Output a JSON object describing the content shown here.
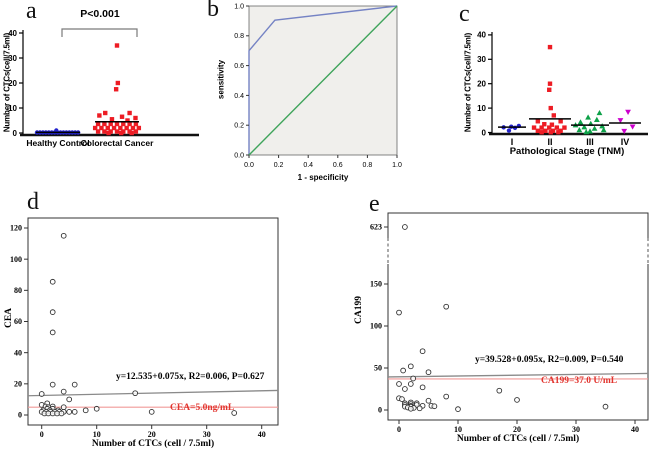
{
  "chart_data": [
    {
      "panel": "a",
      "type": "scatter",
      "title": "",
      "p_annotation": "P<0.001",
      "ylabel": "Number of CTCs(cell/7.5ml)",
      "ylim": [
        0,
        40
      ],
      "yticks": [
        0,
        10,
        20,
        30,
        40
      ],
      "categories": [
        "Healthy Control",
        "Colorectal Cancer"
      ],
      "series": [
        {
          "name": "Healthy Control",
          "marker": "circle",
          "color": "#2222cc",
          "mean": 0.25,
          "points": [
            [
              -0.5,
              0.2
            ],
            [
              -0.43,
              0.2
            ],
            [
              -0.36,
              0.2
            ],
            [
              -0.29,
              0.2
            ],
            [
              -0.22,
              0.2
            ],
            [
              -0.15,
              0.2
            ],
            [
              -0.08,
              0.2
            ],
            [
              -0.04,
              1.0
            ],
            [
              -0.01,
              0.2
            ],
            [
              0.06,
              0.2
            ],
            [
              0.13,
              0.2
            ],
            [
              0.2,
              0.2
            ],
            [
              0.27,
              0.2
            ],
            [
              0.34,
              0.2
            ],
            [
              0.41,
              0.2
            ],
            [
              0.48,
              0.2
            ]
          ]
        },
        {
          "name": "Colorectal Cancer",
          "marker": "square",
          "color": "#ed1c24",
          "mean": 4.5,
          "points": [
            [
              0,
              35
            ],
            [
              0.02,
              20
            ],
            [
              -0.02,
              17.5
            ],
            [
              -0.28,
              8
            ],
            [
              0.3,
              8
            ],
            [
              -0.42,
              7
            ],
            [
              0.12,
              6.5
            ],
            [
              0.44,
              6
            ],
            [
              -0.12,
              5.5
            ],
            [
              0.25,
              5
            ],
            [
              -0.45,
              3.6
            ],
            [
              -0.3,
              3.6
            ],
            [
              -0.15,
              3.6
            ],
            [
              0,
              3.6
            ],
            [
              0.15,
              3.6
            ],
            [
              0.3,
              3.6
            ],
            [
              0.45,
              3.6
            ],
            [
              -0.52,
              2
            ],
            [
              -0.37,
              2
            ],
            [
              -0.22,
              2
            ],
            [
              -0.07,
              2
            ],
            [
              0.08,
              2
            ],
            [
              0.23,
              2
            ],
            [
              0.38,
              2
            ],
            [
              0.52,
              2
            ],
            [
              -0.45,
              0.6
            ],
            [
              -0.3,
              0.6
            ],
            [
              -0.15,
              0.6
            ],
            [
              0,
              0.6
            ],
            [
              0.15,
              0.6
            ],
            [
              0.3,
              0.6
            ],
            [
              0.45,
              0.6
            ],
            [
              -0.2,
              0
            ],
            [
              0.1,
              0
            ],
            [
              0.35,
              0
            ]
          ]
        }
      ]
    },
    {
      "panel": "b",
      "type": "line",
      "title": "",
      "xlabel": "1 - specificity",
      "ylabel": "sensitivity",
      "xlim": [
        0,
        1
      ],
      "ylim": [
        0,
        1
      ],
      "xticks": [
        "0.0",
        "0.2",
        "0.4",
        "0.6",
        "0.8",
        "1.0"
      ],
      "yticks": [
        "0.0",
        "0.2",
        "0.4",
        "0.6",
        "0.8",
        "1.0"
      ],
      "plot_bg": "#f0efec",
      "series": [
        {
          "name": "ROC curve",
          "color": "#7583c4",
          "points": [
            [
              0,
              0
            ],
            [
              0,
              0.7
            ],
            [
              0.175,
              0.905
            ],
            [
              1.0,
              1.0
            ]
          ]
        },
        {
          "name": "Reference line",
          "color": "#3fa45b",
          "points": [
            [
              0,
              0
            ],
            [
              1.0,
              1.0
            ]
          ]
        }
      ]
    },
    {
      "panel": "c",
      "type": "scatter",
      "title": "",
      "xlabel": "Pathological Stage (TNM)",
      "ylabel": "Number of CTCs(cell/7.5ml)",
      "ylim": [
        0,
        40
      ],
      "yticks": [
        0,
        10,
        20,
        30,
        40
      ],
      "categories": [
        "I",
        "II",
        "III",
        "IV"
      ],
      "series": [
        {
          "name": "I",
          "marker": "circle",
          "color": "#2222cc",
          "mean": 2.2,
          "points": [
            [
              -0.22,
              2.1
            ],
            [
              -0.02,
              2.4
            ],
            [
              0.18,
              2.7
            ],
            [
              0.08,
              1.9
            ],
            [
              -0.08,
              0.8
            ]
          ]
        },
        {
          "name": "II",
          "marker": "square",
          "color": "#ed1c24",
          "mean": 5.6,
          "points": [
            [
              0,
              35
            ],
            [
              0,
              20
            ],
            [
              -0.02,
              17.5
            ],
            [
              0.02,
              10
            ],
            [
              0.1,
              7
            ],
            [
              -0.32,
              4.6
            ],
            [
              0.28,
              4.6
            ],
            [
              -0.15,
              3.4
            ],
            [
              0.05,
              3.2
            ],
            [
              -0.42,
              2
            ],
            [
              -0.22,
              2
            ],
            [
              -0.02,
              2
            ],
            [
              0.18,
              2
            ],
            [
              0.38,
              2
            ],
            [
              -0.32,
              0.7
            ],
            [
              -0.12,
              0.7
            ],
            [
              0.08,
              0.7
            ],
            [
              0.28,
              0.7
            ],
            [
              -0.22,
              0.1
            ],
            [
              0.02,
              0.1
            ],
            [
              0.22,
              0.1
            ]
          ]
        },
        {
          "name": "III",
          "marker": "triangle-up",
          "color": "#0da148",
          "mean": 3.0,
          "points": [
            [
              0.25,
              8
            ],
            [
              -0.05,
              6.2
            ],
            [
              0.18,
              5.2
            ],
            [
              -0.25,
              4.2
            ],
            [
              0.02,
              3.6
            ],
            [
              -0.38,
              3
            ],
            [
              0.32,
              2.6
            ],
            [
              -0.15,
              2.2
            ],
            [
              0.12,
              1.6
            ],
            [
              -0.28,
              1
            ],
            [
              0.36,
              1
            ],
            [
              0,
              0.5
            ],
            [
              -0.1,
              0.2
            ]
          ]
        },
        {
          "name": "IV",
          "marker": "triangle-down",
          "color": "#cc00cc",
          "mean": 3.9,
          "points": [
            [
              0.08,
              8.4
            ],
            [
              -0.12,
              5
            ],
            [
              0.2,
              2.4
            ],
            [
              -0.02,
              0.6
            ]
          ]
        }
      ]
    },
    {
      "panel": "d",
      "type": "scatter",
      "title": "",
      "xlabel": "Number of CTCs (cell / 7.5ml)",
      "ylabel": "CEA",
      "xlim": [
        -2.5,
        43
      ],
      "ylim": [
        -8,
        125
      ],
      "xticks": [
        0,
        10,
        20,
        30,
        40
      ],
      "yticks": [
        0,
        20,
        40,
        60,
        80,
        100,
        120
      ],
      "points": [
        [
          4,
          115
        ],
        [
          2,
          85.5
        ],
        [
          2,
          66
        ],
        [
          2,
          53
        ],
        [
          2,
          19.5
        ],
        [
          6,
          19.5
        ],
        [
          4,
          15
        ],
        [
          17,
          14
        ],
        [
          0,
          13.5
        ],
        [
          5,
          10
        ],
        [
          0,
          6.5
        ],
        [
          1,
          7.5
        ],
        [
          0.7,
          5.5
        ],
        [
          1.2,
          5
        ],
        [
          2,
          5.5
        ],
        [
          4,
          5
        ],
        [
          1,
          4
        ],
        [
          2,
          4
        ],
        [
          10,
          4
        ],
        [
          8,
          3
        ],
        [
          0.3,
          3
        ],
        [
          1.5,
          3
        ],
        [
          3,
          3
        ],
        [
          0,
          2
        ],
        [
          0.8,
          2
        ],
        [
          1.6,
          2
        ],
        [
          2.4,
          2
        ],
        [
          3.2,
          2
        ],
        [
          4,
          2
        ],
        [
          5,
          2
        ],
        [
          6,
          2
        ],
        [
          20,
          2
        ],
        [
          0.5,
          1
        ],
        [
          1.2,
          1
        ],
        [
          2,
          1
        ],
        [
          2.8,
          1
        ],
        [
          3.6,
          1
        ],
        [
          35,
          1.3
        ]
      ],
      "regression": {
        "label": "y=12.535+0.075x, R2=0.006, P=0.627",
        "intercept": 12.535,
        "slope": 0.075,
        "color": "#8a8a8a"
      },
      "threshold": {
        "label": "CEA=5.0ng/mL",
        "value": 5.0,
        "color": "#f09a98"
      }
    },
    {
      "panel": "e",
      "type": "scatter",
      "title": "",
      "xlabel": "Number of CTCs (cell / 7.5ml)",
      "ylabel": "CA199",
      "xlim": [
        -2,
        42.5
      ],
      "xticks": [
        0,
        10,
        20,
        30,
        40
      ],
      "yticks": [
        0,
        50,
        100,
        150
      ],
      "y_break_value": 623,
      "points": [
        [
          1,
          623
        ],
        [
          8,
          123
        ],
        [
          0,
          116
        ],
        [
          4,
          70
        ],
        [
          2,
          52
        ],
        [
          0.7,
          47
        ],
        [
          5,
          45
        ],
        [
          2.4,
          37.5
        ],
        [
          0,
          31
        ],
        [
          2,
          31
        ],
        [
          4,
          27
        ],
        [
          1,
          25
        ],
        [
          17,
          23
        ],
        [
          8,
          16
        ],
        [
          0,
          14
        ],
        [
          0.5,
          13
        ],
        [
          20,
          12
        ],
        [
          5,
          11
        ],
        [
          2,
          9
        ],
        [
          1,
          8
        ],
        [
          3,
          8
        ],
        [
          2,
          7
        ],
        [
          1,
          6
        ],
        [
          3,
          6
        ],
        [
          2,
          5
        ],
        [
          4,
          5
        ],
        [
          5.5,
          5
        ],
        [
          6,
          4.5
        ],
        [
          1,
          4
        ],
        [
          2,
          4
        ],
        [
          1.5,
          3
        ],
        [
          2.5,
          2.5
        ],
        [
          3.5,
          2
        ],
        [
          2,
          1.5
        ],
        [
          10,
          1
        ],
        [
          35,
          4
        ]
      ],
      "regression": {
        "label": "y=39.528+0.095x, R2=0.009, P=0.540",
        "intercept": 39.528,
        "slope": 0.095,
        "color": "#8a8a8a"
      },
      "threshold": {
        "label": "CA199=37.0 U/mL",
        "value": 37.0,
        "color": "#f09a98"
      }
    }
  ]
}
